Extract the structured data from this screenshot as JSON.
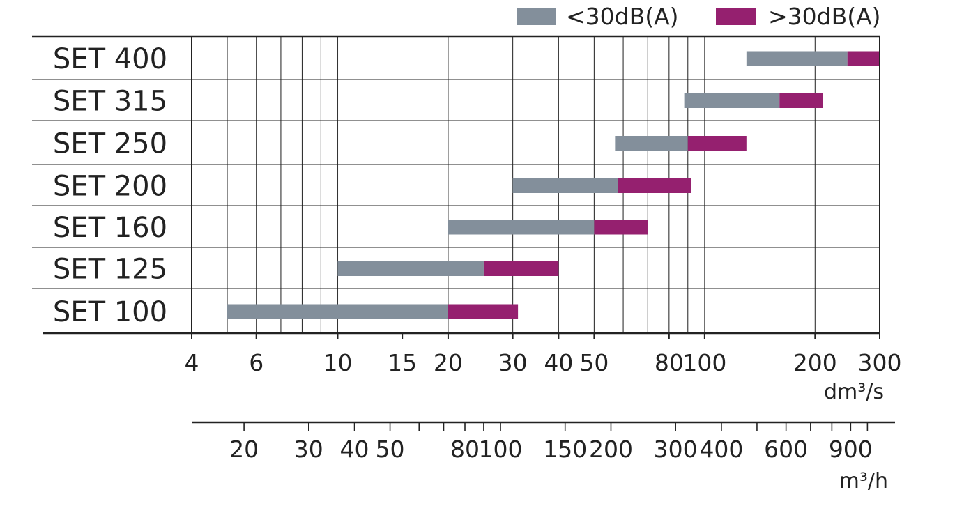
{
  "chart_data": {
    "type": "bar",
    "subtype": "horizontal-range-log",
    "x_scale": "log",
    "xlim": [
      4,
      300
    ],
    "x_unit": "dm³/s",
    "x_ticks": [
      4,
      6,
      10,
      15,
      20,
      30,
      40,
      50,
      80,
      100,
      200,
      300
    ],
    "x_tick_labels": [
      "4",
      "6",
      "10",
      "15",
      "20",
      "30",
      "40",
      "50",
      "80",
      "100",
      "200",
      "300"
    ],
    "x_grid": [
      4,
      5,
      6,
      7,
      8,
      9,
      10,
      20,
      30,
      40,
      50,
      60,
      70,
      80,
      90,
      100,
      200,
      300
    ],
    "secondary_axis": {
      "unit": "m³/h",
      "conversion_from_primary": 3.6,
      "ticks": [
        20,
        30,
        40,
        50,
        80,
        100,
        150,
        200,
        300,
        400,
        600,
        900
      ],
      "tick_labels": [
        "20",
        "30",
        "40",
        "50",
        "80",
        "100",
        "150",
        "200",
        "300",
        "400",
        "600",
        "900"
      ],
      "minor_ticks": [
        60,
        70,
        90,
        500,
        700,
        800,
        1000
      ]
    },
    "legend": {
      "placement": "top-right",
      "items": [
        {
          "label": "<30dB(A)",
          "color": "#838f9b"
        },
        {
          "label": ">30dB(A)",
          "color": "#95206f"
        }
      ]
    },
    "categories": [
      "SET 400",
      "SET 315",
      "SET 250",
      "SET 200",
      "SET 160",
      "SET 125",
      "SET 100"
    ],
    "rows": [
      {
        "name": "SET 400",
        "start": 130,
        "quiet_end": 245,
        "end": 300
      },
      {
        "name": "SET 315",
        "start": 88,
        "quiet_end": 160,
        "end": 210
      },
      {
        "name": "SET 250",
        "start": 57,
        "quiet_end": 90,
        "end": 130
      },
      {
        "name": "SET 200",
        "start": 30,
        "quiet_end": 58,
        "end": 92
      },
      {
        "name": "SET 160",
        "start": 20,
        "quiet_end": 50,
        "end": 70
      },
      {
        "name": "SET 125",
        "start": 10,
        "quiet_end": 25,
        "end": 40
      },
      {
        "name": "SET 100",
        "start": 5,
        "quiet_end": 20,
        "end": 31
      }
    ]
  }
}
